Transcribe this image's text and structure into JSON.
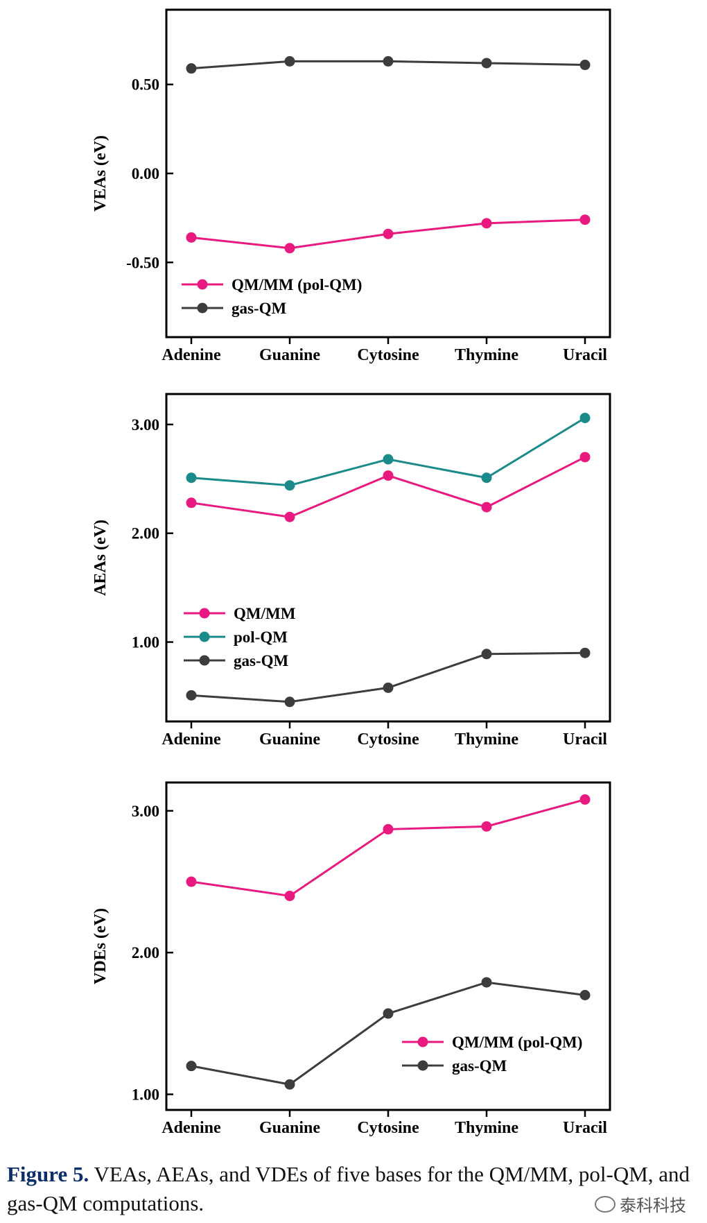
{
  "chart_data": [
    {
      "type": "line",
      "ylabel": "VEAs (eV)",
      "categories": [
        "Adenine",
        "Guanine",
        "Cytosine",
        "Thymine",
        "Uracil"
      ],
      "ylim": [
        -0.92,
        0.92
      ],
      "yticks": [
        -0.5,
        0.0,
        0.5
      ],
      "ytick_labels": [
        "-0.50",
        "0.00",
        "0.50"
      ],
      "legend_position": "bottom-left",
      "series": [
        {
          "name": "QM/MM (pol-QM)",
          "color": "#e8197f",
          "values": [
            -0.36,
            -0.42,
            -0.34,
            -0.28,
            -0.26
          ]
        },
        {
          "name": "gas-QM",
          "color": "#3d3d3d",
          "values": [
            0.59,
            0.63,
            0.63,
            0.62,
            0.61
          ]
        }
      ]
    },
    {
      "type": "line",
      "ylabel": "AEAs (eV)",
      "categories": [
        "Adenine",
        "Guanine",
        "Cytosine",
        "Thymine",
        "Uracil"
      ],
      "ylim": [
        0.27,
        3.28
      ],
      "yticks": [
        1.0,
        2.0,
        3.0
      ],
      "ytick_labels": [
        "1.00",
        "2.00",
        "3.00"
      ],
      "legend_position": "center-left",
      "series": [
        {
          "name": "QM/MM",
          "color": "#e8197f",
          "values": [
            2.28,
            2.15,
            2.53,
            2.24,
            2.7
          ]
        },
        {
          "name": "pol-QM",
          "color": "#1a8a8a",
          "values": [
            2.51,
            2.44,
            2.68,
            2.51,
            3.06
          ]
        },
        {
          "name": "gas-QM",
          "color": "#3d3d3d",
          "values": [
            0.51,
            0.45,
            0.58,
            0.89,
            0.9
          ]
        }
      ]
    },
    {
      "type": "line",
      "ylabel": "VDEs (eV)",
      "categories": [
        "Adenine",
        "Guanine",
        "Cytosine",
        "Thymine",
        "Uracil"
      ],
      "ylim": [
        0.89,
        3.2
      ],
      "yticks": [
        1.0,
        2.0,
        3.0
      ],
      "ytick_labels": [
        "1.00",
        "2.00",
        "3.00"
      ],
      "legend_position": "bottom-right",
      "series": [
        {
          "name": "QM/MM (pol-QM)",
          "color": "#e8197f",
          "values": [
            2.5,
            2.4,
            2.87,
            2.89,
            3.08
          ]
        },
        {
          "name": "gas-QM",
          "color": "#3d3d3d",
          "values": [
            1.2,
            1.07,
            1.57,
            1.79,
            1.7
          ]
        }
      ]
    }
  ],
  "caption": {
    "label": "Figure 5.",
    "text": " VEAs, AEAs, and VDEs of five bases for the QM/MM, pol-QM, and gas-QM computations."
  },
  "watermark": "泰科科技"
}
